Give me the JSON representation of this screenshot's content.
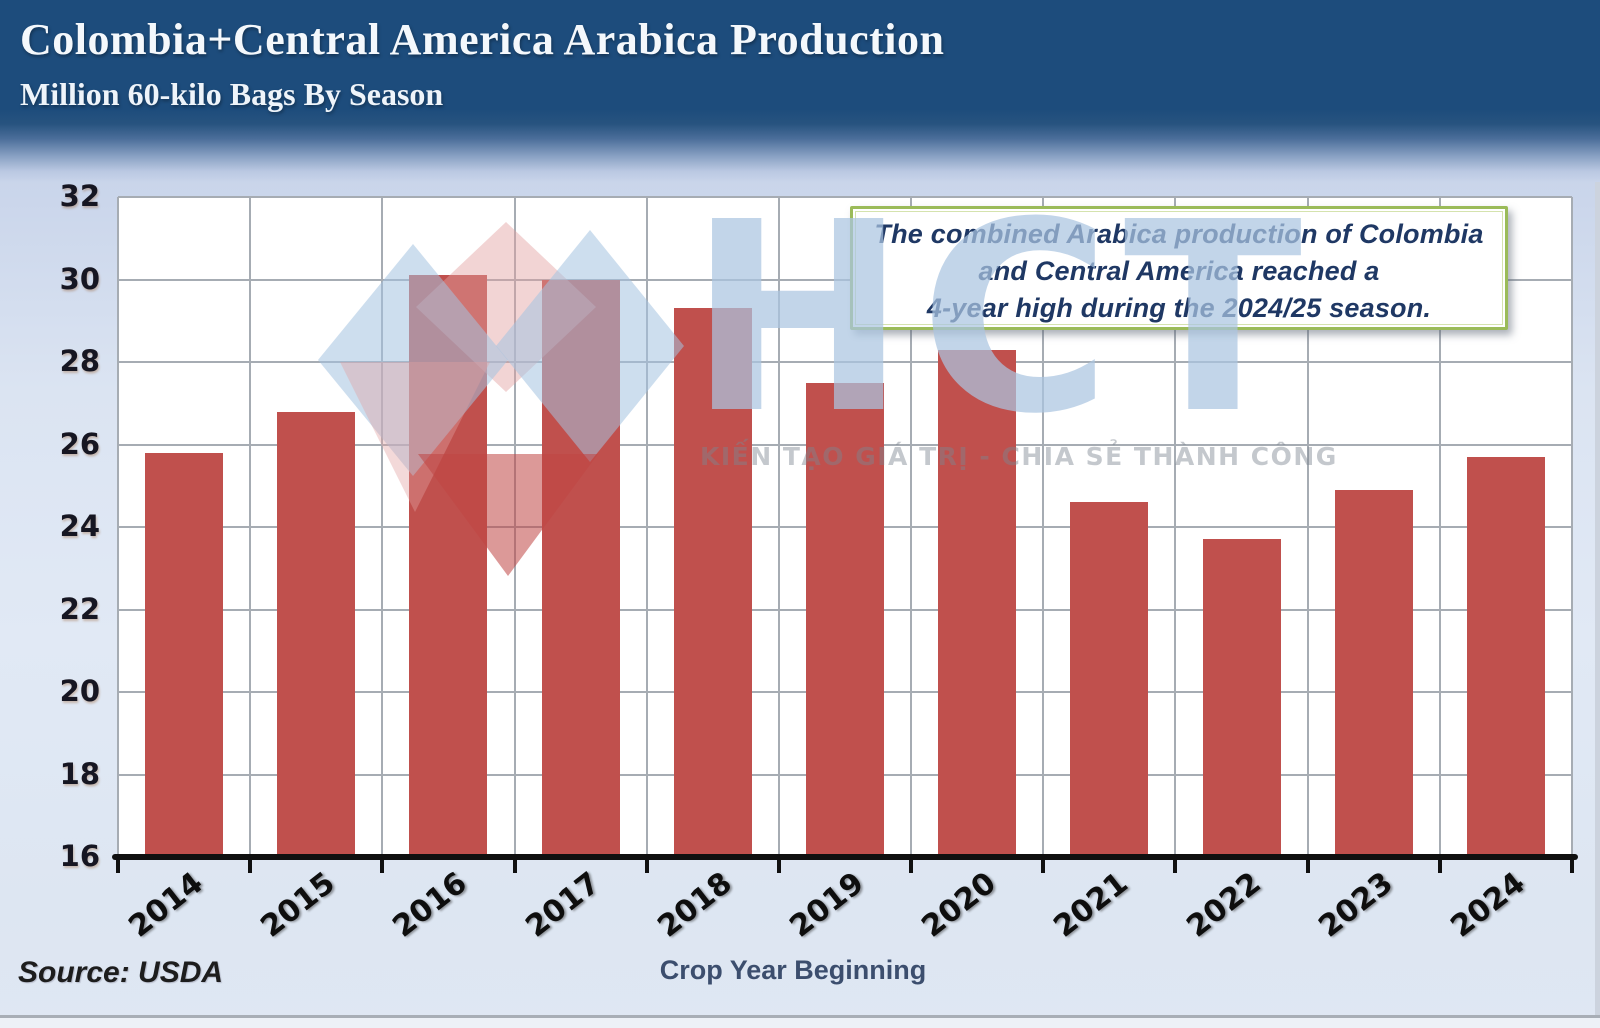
{
  "header": {
    "title": "Colombia+Central America Arabica Production",
    "subtitle": "Million 60-kilo Bags By Season"
  },
  "annotation": {
    "lines": [
      "The combined Arabica production of Colombia",
      "and Central America reached a",
      "4-year high during the 2024/25 season."
    ],
    "border_color": "#9BBB59",
    "text_color": "#1F3864"
  },
  "watermark": {
    "logo_text": "HCT",
    "slogan": "KIẾN TẠO GIÁ TRỊ - CHIA SẺ THÀNH CÔNG"
  },
  "footer": {
    "source": "Source: USDA",
    "x_axis_title": "Crop Year Beginning"
  },
  "colors": {
    "bar": "#C0504D",
    "header_bg": "#1D4C7C",
    "plot_bg": "#FFFFFF",
    "gridline": "#A6ACB3",
    "watermark_blue": "#AAC5E0",
    "watermark_pink": "#E2A0A0",
    "watermark_red": "#C0504D"
  },
  "chart_data": {
    "type": "bar",
    "title": "Colombia+Central America Arabica Production",
    "subtitle": "Million 60-kilo Bags By Season",
    "categories": [
      "2014",
      "2015",
      "2016",
      "2017",
      "2018",
      "2019",
      "2020",
      "2021",
      "2022",
      "2023",
      "2024"
    ],
    "values": [
      25.8,
      26.8,
      30.1,
      30.0,
      29.3,
      27.5,
      28.3,
      24.6,
      23.7,
      24.9,
      25.7
    ],
    "xlabel": "Crop Year Beginning",
    "ylabel": "",
    "ylim": [
      16,
      32
    ],
    "ytick_step": 2,
    "grid": true,
    "legend": "none",
    "source": "USDA",
    "bar_color": "#C0504D"
  }
}
